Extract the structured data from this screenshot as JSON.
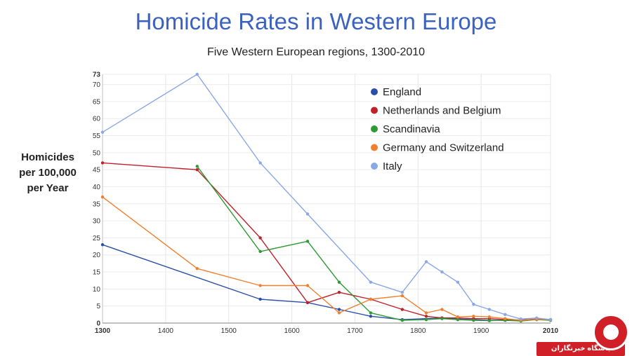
{
  "header": {
    "title": "Homicide Rates in Western Europe",
    "subtitle": "Five Western European regions, 1300-2010"
  },
  "axis": {
    "ylabel_lines": [
      "Homicides",
      "per 100,000",
      "per Year"
    ]
  },
  "watermark": {
    "text": "باشگاه خبرنگاران",
    "color": "#d01f26"
  },
  "chart_data": {
    "type": "line",
    "title": "Homicide Rates in Western Europe",
    "subtitle": "Five Western European regions, 1300-2010",
    "ylabel": "Homicides per 100,000 per Year",
    "xlabel": "",
    "xlim": [
      1300,
      2010
    ],
    "ylim": [
      0,
      73
    ],
    "x_ticks": [
      "1300",
      "1400",
      "1500",
      "1600",
      "1700",
      "1800",
      "1900",
      "2010"
    ],
    "x_tick_values": [
      1300,
      1400,
      1500,
      1600,
      1700,
      1800,
      1900,
      2010
    ],
    "y_ticks": [
      "0",
      "5",
      "10",
      "15",
      "20",
      "25",
      "30",
      "35",
      "40",
      "45",
      "50",
      "55",
      "60",
      "65",
      "70",
      "73"
    ],
    "y_tick_values": [
      0,
      5,
      10,
      15,
      20,
      25,
      30,
      35,
      40,
      45,
      50,
      55,
      60,
      65,
      70,
      73
    ],
    "grid": true,
    "legend_position": "top-right",
    "series": [
      {
        "name": "England",
        "color": "#2a4fa8",
        "points": [
          [
            1300,
            23
          ],
          [
            1550,
            7
          ],
          [
            1625,
            6
          ],
          [
            1675,
            4
          ],
          [
            1725,
            2
          ],
          [
            1775,
            1
          ],
          [
            1838,
            1.5
          ],
          [
            1863,
            1.2
          ],
          [
            1888,
            1
          ],
          [
            1913,
            0.8
          ],
          [
            1938,
            0.8
          ],
          [
            1963,
            0.7
          ],
          [
            1988,
            1.1
          ],
          [
            2010,
            1
          ]
        ]
      },
      {
        "name": "Netherlands and Belgium",
        "color": "#c0202a",
        "points": [
          [
            1300,
            47
          ],
          [
            1450,
            45
          ],
          [
            1550,
            25
          ],
          [
            1625,
            6
          ],
          [
            1675,
            9
          ],
          [
            1725,
            7
          ],
          [
            1775,
            4
          ],
          [
            1813,
            2
          ],
          [
            1838,
            1.5
          ],
          [
            1863,
            1.5
          ],
          [
            1888,
            1.3
          ],
          [
            1913,
            1.3
          ],
          [
            1938,
            1
          ],
          [
            1963,
            0.9
          ],
          [
            1988,
            1.2
          ],
          [
            2010,
            1
          ]
        ]
      },
      {
        "name": "Scandinavia",
        "color": "#2e9a34",
        "points": [
          [
            1450,
            46
          ],
          [
            1550,
            21
          ],
          [
            1625,
            24
          ],
          [
            1675,
            12
          ],
          [
            1725,
            3
          ],
          [
            1775,
            0.8
          ],
          [
            1813,
            1
          ],
          [
            1838,
            1.3
          ],
          [
            1863,
            1
          ],
          [
            1888,
            0.8
          ],
          [
            1913,
            0.7
          ],
          [
            1938,
            0.8
          ],
          [
            1963,
            0.6
          ],
          [
            1988,
            1
          ],
          [
            2010,
            0.8
          ]
        ]
      },
      {
        "name": "Germany and Switzerland",
        "color": "#f07f2e",
        "points": [
          [
            1300,
            37
          ],
          [
            1450,
            16
          ],
          [
            1550,
            11
          ],
          [
            1625,
            11
          ],
          [
            1675,
            3
          ],
          [
            1725,
            7
          ],
          [
            1775,
            8
          ],
          [
            1813,
            3
          ],
          [
            1838,
            4
          ],
          [
            1863,
            1.8
          ],
          [
            1888,
            2
          ],
          [
            1913,
            1.8
          ],
          [
            1938,
            1.3
          ],
          [
            1963,
            0.8
          ],
          [
            1988,
            1.1
          ],
          [
            2010,
            1
          ]
        ]
      },
      {
        "name": "Italy",
        "color": "#8aa7e6",
        "points": [
          [
            1300,
            56
          ],
          [
            1450,
            73
          ],
          [
            1550,
            47
          ],
          [
            1625,
            32
          ],
          [
            1725,
            12
          ],
          [
            1775,
            9
          ],
          [
            1813,
            18
          ],
          [
            1838,
            15
          ],
          [
            1863,
            12
          ],
          [
            1888,
            5.5
          ],
          [
            1913,
            4
          ],
          [
            1938,
            2.5
          ],
          [
            1963,
            1.2
          ],
          [
            1988,
            1.5
          ],
          [
            2010,
            1
          ]
        ]
      }
    ]
  }
}
